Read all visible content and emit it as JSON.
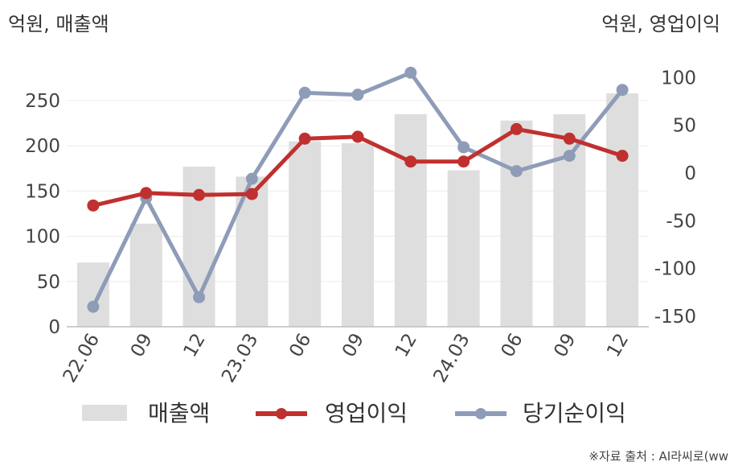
{
  "chart_data": {
    "type": "bar+line",
    "left_axis_label": "억원, 매출액",
    "right_axis_label": "억원, 영업이익",
    "categories": [
      "22.06",
      "09",
      "12",
      "23.03",
      "06",
      "09",
      "12",
      "24.03",
      "06",
      "09",
      "12"
    ],
    "left_axis": {
      "range": [
        0,
        280
      ],
      "ticks": [
        "0",
        "50",
        "100",
        "150",
        "200",
        "250"
      ],
      "tick_values": [
        0,
        50,
        100,
        150,
        200,
        250
      ]
    },
    "right_axis": {
      "range": [
        -160,
        110
      ],
      "ticks": [
        "-150",
        "-100",
        "-50",
        "0",
        "50",
        "100"
      ],
      "tick_values": [
        -150,
        -100,
        -50,
        0,
        50,
        100
      ]
    },
    "grid": true,
    "legend_position": "bottom",
    "series": [
      {
        "name": "매출액",
        "type": "bar",
        "axis": "left",
        "color": "#dedede",
        "values": [
          71,
          114,
          177,
          166,
          205,
          203,
          235,
          173,
          228,
          235,
          258
        ]
      },
      {
        "name": "영업이익",
        "type": "line",
        "axis": "right",
        "color": "#c0302f",
        "values": [
          -34,
          -21,
          -23,
          -22,
          36,
          38,
          12,
          12,
          46,
          36,
          18
        ]
      },
      {
        "name": "당기순이익",
        "type": "line",
        "axis": "right",
        "color": "#8f9cb8",
        "values": [
          -140,
          -26,
          -130,
          -6,
          84,
          82,
          105,
          27,
          2,
          18,
          87
        ]
      }
    ],
    "source_note": "※자료 출처 : AI라씨로(ww"
  }
}
